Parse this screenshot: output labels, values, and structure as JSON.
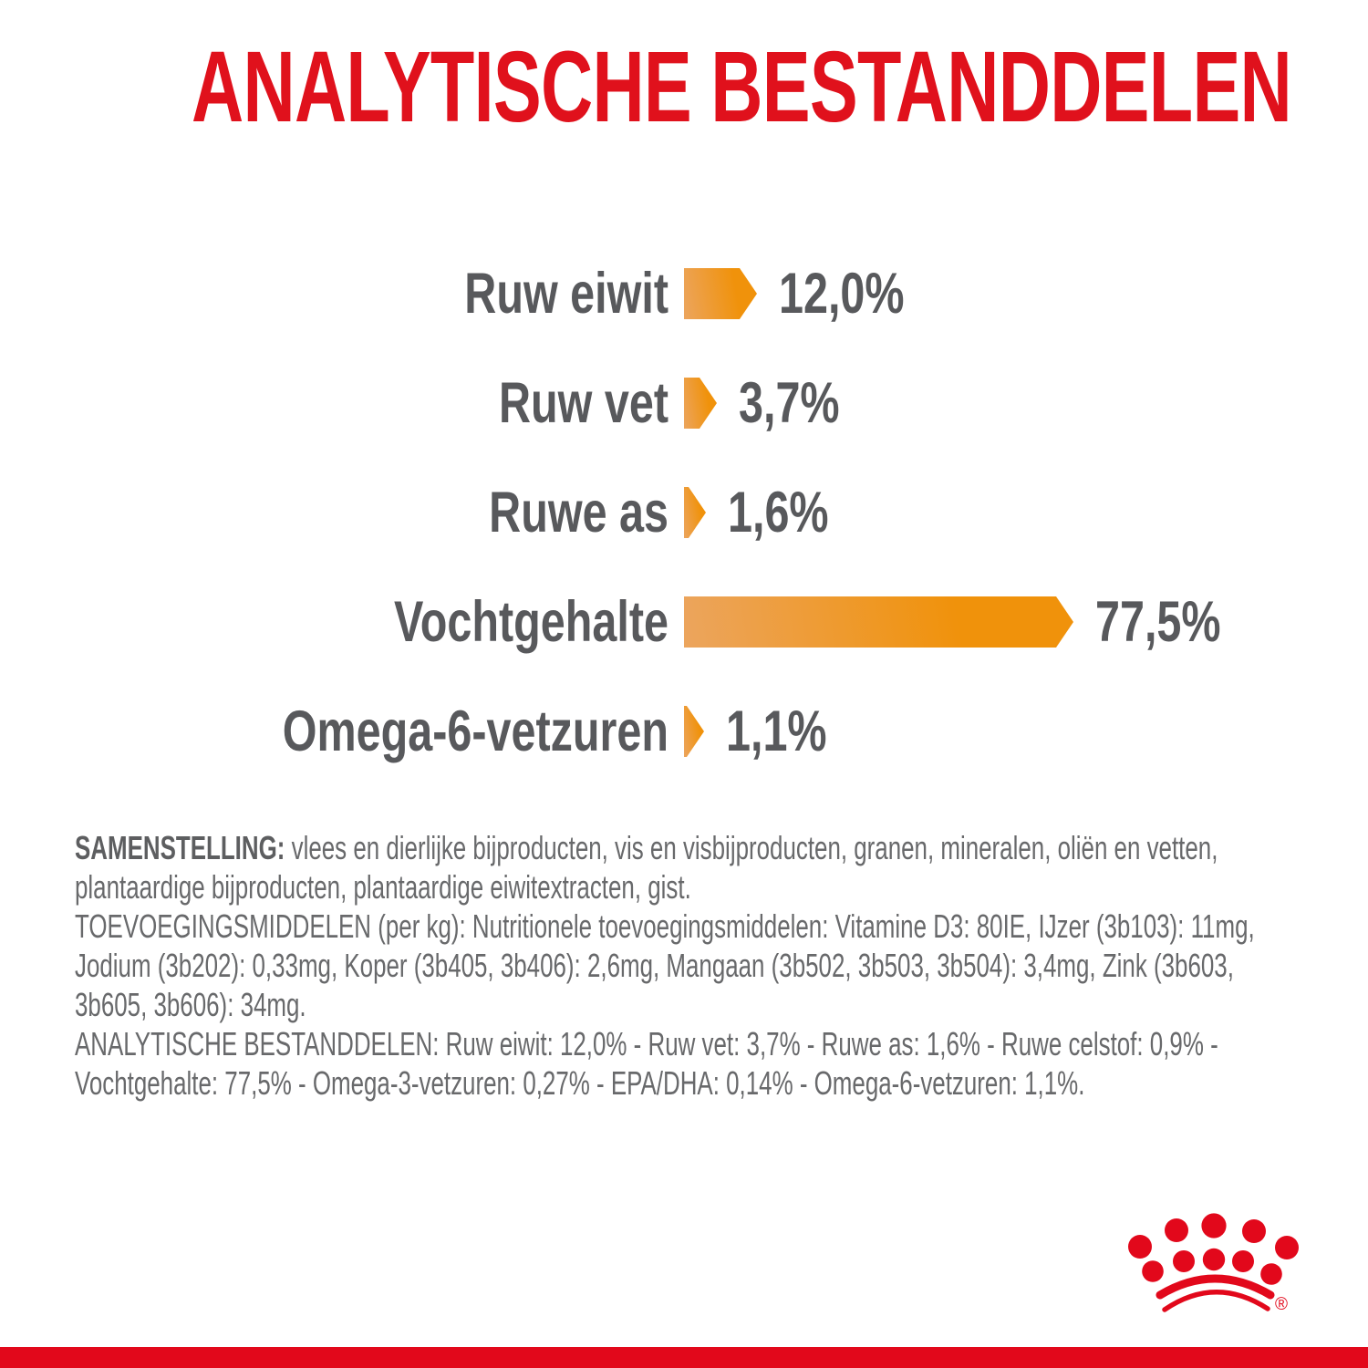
{
  "title": "ANALYTISCHE BESTANDDELEN",
  "colors": {
    "brand_red": "#E0111C",
    "stripe_red": "#E2081B",
    "bar_orange_light": "#ECA55E",
    "bar_orange": "#F0920B",
    "label_gray": "#58595C",
    "body_gray": "#68696B"
  },
  "chart_data": {
    "type": "bar",
    "orientation": "horizontal",
    "title": "ANALYTISCHE BESTANDDELEN",
    "unit": "%",
    "categories": [
      "Ruw eiwit",
      "Ruw vet",
      "Ruwe as",
      "Vochtgehalte",
      "Omega-6-vetzuren"
    ],
    "values": [
      12.0,
      3.7,
      1.6,
      77.5,
      1.1
    ],
    "value_labels": [
      "12,0%",
      "3,7%",
      "1,6%",
      "77,5%",
      "1,1%"
    ],
    "xlim": [
      0,
      100
    ],
    "grid": false,
    "legend": false,
    "bar_style": "right-pointing arrow, orange gradient, value label right of bar, category label left of bar"
  },
  "composition": {
    "samenstelling_label": "SAMENSTELLING:",
    "samenstelling_text": "vlees en dierlijke bijproducten, vis en visbijproducten, granen, mineralen, oliën en vetten, plantaardige bijproducten, plantaardige eiwitextracten, gist.",
    "toevoegingsmiddelen": "TOEVOEGINGSMIDDELEN (per kg): Nutritionele toevoegingsmiddelen: Vitamine D3: 80IE, IJzer (3b103): 11mg, Jodium (3b202): 0,33mg, Koper (3b405, 3b406): 2,6mg, Mangaan (3b502, 3b503, 3b504): 3,4mg, Zink (3b603, 3b605, 3b606): 34mg.",
    "analytische": "ANALYTISCHE BESTANDDELEN: Ruw eiwit: 12,0% - Ruw vet: 3,7% - Ruwe as: 1,6% - Ruwe celstof: 0,9% - Vochtgehalte: 77,5% - Omega-3-vetzuren: 0,27% - EPA/DHA: 0,14% - Omega-6-vetzuren: 1,1%."
  },
  "footer": {
    "logo": "royal-canin-crown",
    "registered_mark": "®"
  }
}
